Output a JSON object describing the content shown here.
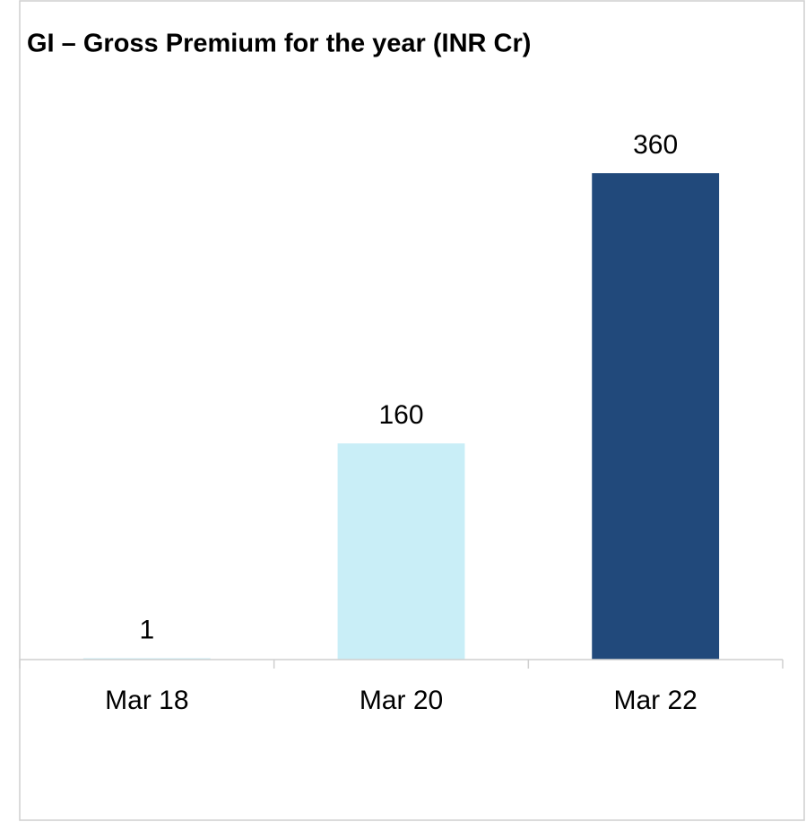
{
  "chart_data": {
    "type": "bar",
    "title": "GI – Gross Premium for the year (INR Cr)",
    "categories": [
      "Mar 18",
      "Mar 20",
      "Mar 22"
    ],
    "values": [
      1,
      160,
      360
    ],
    "colors": [
      "#c9eef7",
      "#c9eef7",
      "#21497b"
    ]
  }
}
